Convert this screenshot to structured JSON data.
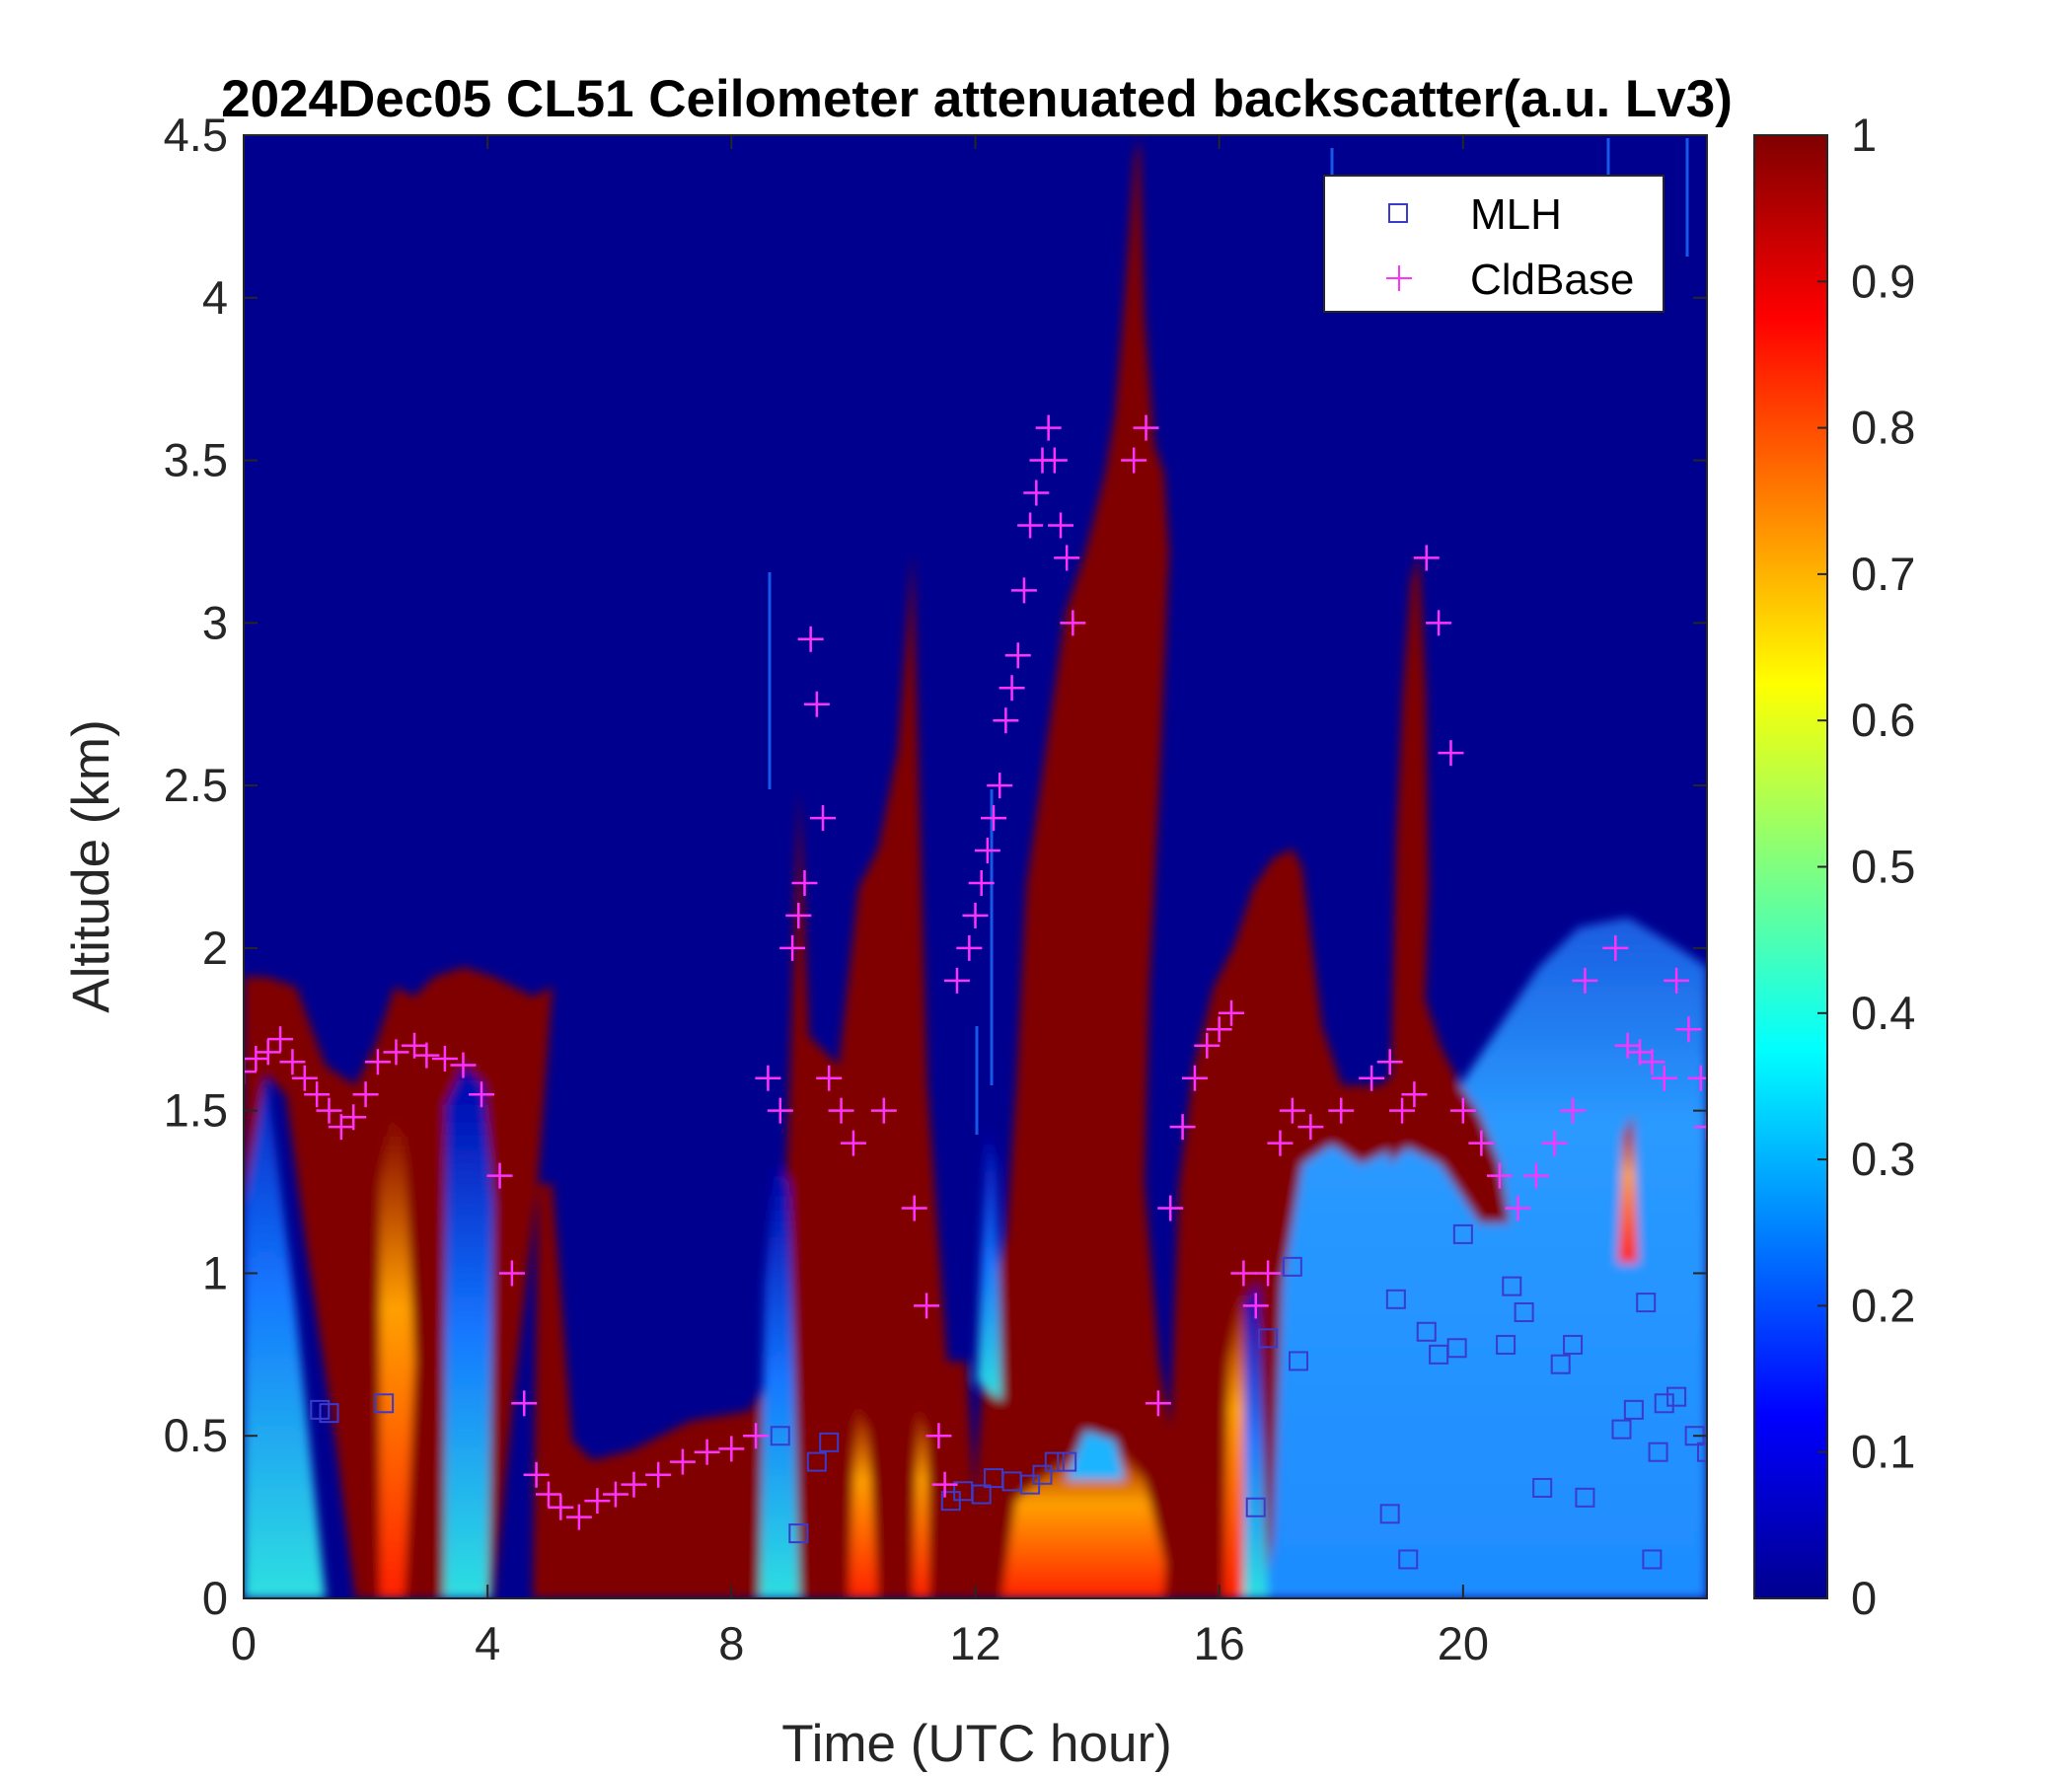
{
  "chart_data": {
    "type": "heatmap",
    "title": "2024Dec05 CL51 Ceilometer attenuated backscatter(a.u. Lv3)",
    "xlabel": "Time (UTC hour)",
    "ylabel": "Altitude (km)",
    "xlim": [
      0,
      24
    ],
    "ylim": [
      0,
      4.5
    ],
    "x_ticks": [
      0,
      4,
      8,
      12,
      16,
      20
    ],
    "x_tick_labels": [
      "0",
      "4",
      "8",
      "12",
      "16",
      "20"
    ],
    "y_ticks": [
      0,
      0.5,
      1,
      1.5,
      2,
      2.5,
      3,
      3.5,
      4,
      4.5
    ],
    "y_tick_labels": [
      "0",
      "0.5",
      "1",
      "1.5",
      "2",
      "2.5",
      "3",
      "3.5",
      "4",
      "4.5"
    ],
    "colorbar": {
      "colormap": "jet",
      "range": [
        0,
        1
      ],
      "ticks": [
        0,
        0.1,
        0.2,
        0.3,
        0.4,
        0.5,
        0.6,
        0.7,
        0.8,
        0.9,
        1
      ],
      "tick_labels": [
        "0",
        "0.1",
        "0.2",
        "0.3",
        "0.4",
        "0.5",
        "0.6",
        "0.7",
        "0.8",
        "0.9",
        "1"
      ]
    },
    "legend": {
      "placement": "top-right",
      "entries": [
        {
          "label": "MLH",
          "marker": "square",
          "color": "#3a3acc"
        },
        {
          "label": "CldBase",
          "marker": "plus",
          "color": "#ff33ff"
        }
      ]
    },
    "series": [
      {
        "name": "MLH",
        "marker": "square",
        "color": "#3a3acc",
        "x": [
          1.25,
          1.4,
          2.3,
          8.8,
          9.1,
          9.4,
          9.6,
          11.6,
          11.8,
          12.1,
          12.3,
          12.6,
          12.9,
          13.1,
          13.3,
          13.5,
          16.6,
          16.8,
          17.2,
          17.3,
          18.8,
          18.9,
          19.1,
          19.4,
          19.6,
          19.9,
          20.0,
          20.7,
          20.8,
          21.0,
          21.3,
          21.6,
          21.8,
          22.0,
          22.6,
          22.8,
          23.0,
          23.1,
          23.2,
          23.3,
          23.5,
          23.8,
          24.0
        ],
        "y": [
          0.58,
          0.57,
          0.6,
          0.5,
          0.2,
          0.42,
          0.48,
          0.3,
          0.33,
          0.32,
          0.37,
          0.36,
          0.35,
          0.38,
          0.42,
          0.42,
          0.28,
          0.8,
          1.02,
          0.73,
          0.26,
          0.92,
          0.12,
          0.82,
          0.75,
          0.77,
          1.12,
          0.78,
          0.96,
          0.88,
          0.34,
          0.72,
          0.78,
          0.31,
          0.52,
          0.58,
          0.91,
          0.12,
          0.45,
          0.6,
          0.62,
          0.5,
          0.45
        ]
      },
      {
        "name": "CldBase",
        "marker": "plus",
        "color": "#ff33ff",
        "x": [
          0.0,
          0.2,
          0.4,
          0.6,
          0.8,
          1.0,
          1.2,
          1.4,
          1.6,
          1.8,
          2.0,
          2.2,
          2.5,
          2.8,
          3.0,
          3.3,
          3.6,
          3.9,
          4.2,
          4.4,
          4.6,
          4.8,
          5.0,
          5.2,
          5.5,
          5.8,
          6.1,
          6.4,
          6.8,
          7.2,
          7.6,
          8.0,
          8.4,
          8.6,
          8.8,
          9.0,
          9.1,
          9.2,
          9.3,
          9.4,
          9.5,
          9.6,
          9.8,
          10.0,
          10.5,
          11.0,
          11.2,
          11.4,
          11.5,
          11.7,
          11.9,
          12.0,
          12.1,
          12.2,
          12.3,
          12.4,
          12.5,
          12.6,
          12.7,
          12.8,
          12.9,
          13.0,
          13.1,
          13.2,
          13.3,
          13.4,
          13.5,
          13.6,
          14.6,
          14.8,
          15.0,
          15.2,
          15.4,
          15.6,
          15.8,
          16.0,
          16.2,
          16.4,
          16.6,
          16.8,
          17.0,
          17.2,
          17.5,
          18.0,
          18.5,
          18.8,
          19.0,
          19.2,
          19.4,
          19.6,
          19.8,
          20.0,
          20.3,
          20.6,
          20.9,
          21.2,
          21.5,
          21.8,
          22.0,
          22.5,
          22.7,
          22.9,
          23.1,
          23.3,
          23.5,
          23.7,
          23.9,
          24.0
        ],
        "y": [
          1.62,
          1.66,
          1.68,
          1.72,
          1.65,
          1.6,
          1.55,
          1.5,
          1.45,
          1.48,
          1.55,
          1.65,
          1.68,
          1.7,
          1.67,
          1.66,
          1.64,
          1.55,
          1.3,
          1.0,
          0.6,
          0.38,
          0.32,
          0.28,
          0.25,
          0.3,
          0.32,
          0.35,
          0.38,
          0.42,
          0.45,
          0.46,
          0.5,
          1.6,
          1.5,
          2.0,
          2.1,
          2.2,
          2.95,
          2.75,
          2.4,
          1.6,
          1.5,
          1.4,
          1.5,
          1.2,
          0.9,
          0.5,
          0.35,
          1.9,
          2.0,
          2.1,
          2.2,
          2.3,
          2.4,
          2.5,
          2.7,
          2.8,
          2.9,
          3.1,
          3.3,
          3.4,
          3.5,
          3.6,
          3.5,
          3.3,
          3.2,
          3.0,
          3.5,
          3.6,
          0.6,
          1.2,
          1.45,
          1.6,
          1.7,
          1.75,
          1.8,
          1.0,
          0.9,
          1.0,
          1.4,
          1.5,
          1.45,
          1.5,
          1.6,
          1.65,
          1.5,
          1.55,
          3.2,
          3.0,
          2.6,
          1.5,
          1.4,
          1.3,
          1.2,
          1.3,
          1.4,
          1.5,
          1.9,
          2.0,
          1.7,
          1.68,
          1.65,
          1.6,
          1.9,
          1.75,
          1.6,
          1.45
        ]
      }
    ]
  }
}
